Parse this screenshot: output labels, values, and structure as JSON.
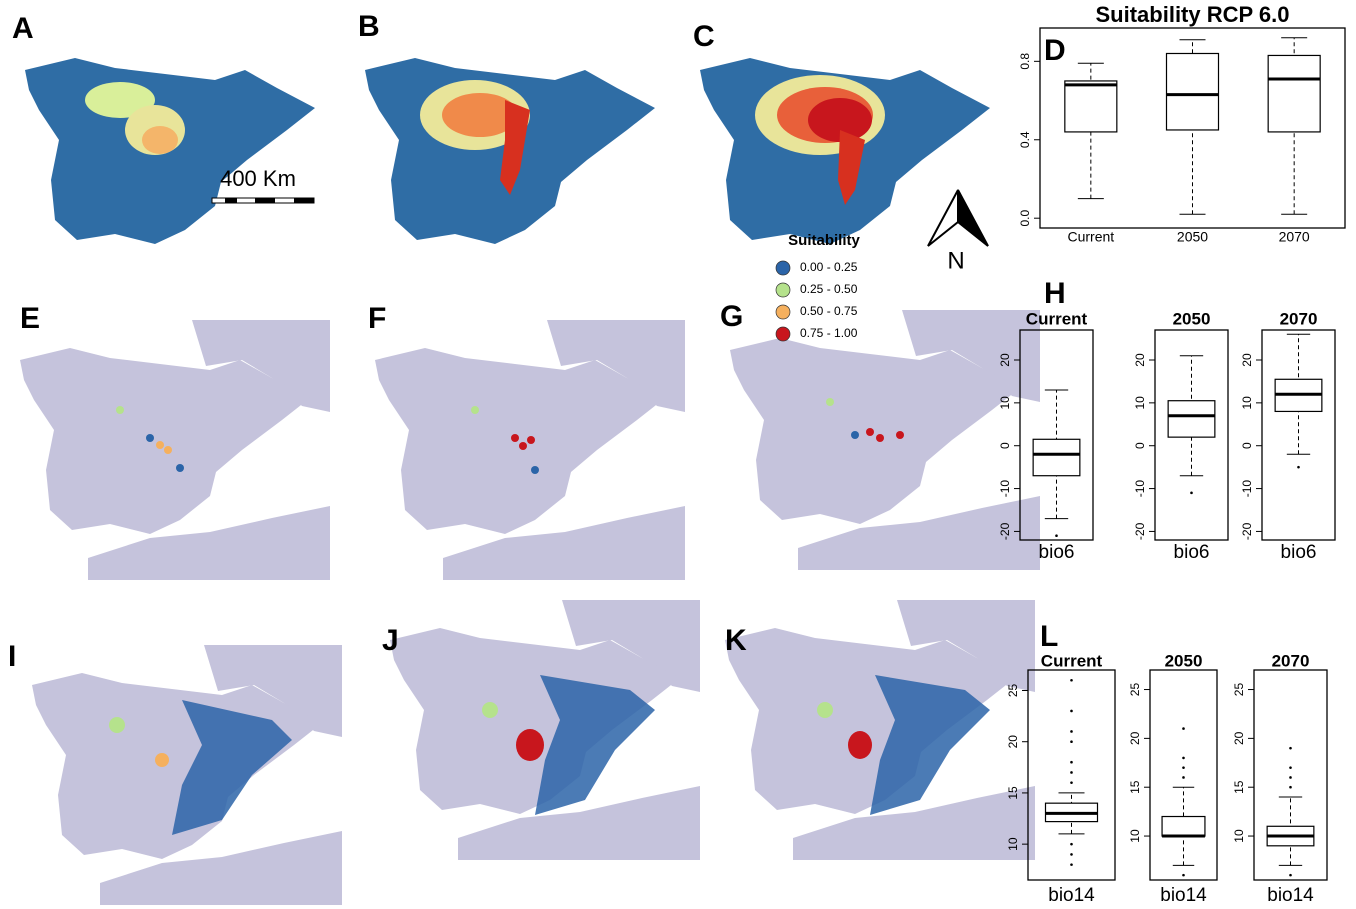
{
  "panel_labels": [
    "A",
    "B",
    "C",
    "D",
    "E",
    "F",
    "G",
    "H",
    "I",
    "J",
    "K",
    "L"
  ],
  "scale_bar": "400 Km",
  "north": "N",
  "legend": {
    "title": "Suitability",
    "items": [
      {
        "label": "0.00 - 0.25",
        "color": "#2b64a8"
      },
      {
        "label": "0.25 - 0.50",
        "color": "#b5e28c"
      },
      {
        "label": "0.50 - 0.75",
        "color": "#f5b05e"
      },
      {
        "label": "0.75 - 1.00",
        "color": "#c8161d"
      }
    ]
  },
  "chart_data": [
    {
      "type": "box",
      "title": "Suitability RCP 6.0",
      "categories": [
        "Current",
        "2050",
        "2070"
      ],
      "min": [
        0.1,
        0.02,
        0.02
      ],
      "q1": [
        0.44,
        0.45,
        0.44
      ],
      "median": [
        0.68,
        0.63,
        0.71
      ],
      "q3": [
        0.7,
        0.84,
        0.83
      ],
      "max": [
        0.79,
        0.91,
        0.92
      ],
      "outliers": [
        [],
        [],
        []
      ],
      "ylim": [
        -0.05,
        0.97
      ],
      "yticks": [
        {
          "value": 0,
          "label": "0.0"
        },
        0.4,
        0.8
      ]
    },
    {
      "type": "box",
      "title": "Current",
      "xlabel": "bio6",
      "min": [
        -17
      ],
      "q1": [
        -7
      ],
      "median": [
        -2
      ],
      "q3": [
        1.5
      ],
      "max": [
        13
      ],
      "outliers": [
        [
          -21
        ]
      ],
      "ylim": [
        -22,
        27
      ],
      "yticks": [
        -20,
        -10,
        0,
        10,
        20
      ]
    },
    {
      "type": "box",
      "title": "2050",
      "xlabel": "bio6",
      "min": [
        -7
      ],
      "q1": [
        2
      ],
      "median": [
        7
      ],
      "q3": [
        10.5
      ],
      "max": [
        21
      ],
      "outliers": [
        [
          -11
        ]
      ],
      "ylim": [
        -22,
        27
      ],
      "yticks": [
        -20,
        -10,
        0,
        10,
        20
      ]
    },
    {
      "type": "box",
      "title": "2070",
      "xlabel": "bio6",
      "min": [
        -2
      ],
      "q1": [
        8
      ],
      "median": [
        12
      ],
      "q3": [
        15.5
      ],
      "max": [
        26
      ],
      "outliers": [
        [
          -5
        ]
      ],
      "ylim": [
        -22,
        27
      ],
      "yticks": [
        -20,
        -10,
        0,
        10,
        20
      ]
    },
    {
      "type": "box",
      "title": "Current",
      "xlabel": "bio14",
      "min": [
        11
      ],
      "q1": [
        12.2
      ],
      "median": [
        13
      ],
      "q3": [
        14
      ],
      "max": [
        15
      ],
      "outliers": [
        [
          8,
          9,
          10,
          16,
          17,
          18,
          20,
          21,
          23,
          26
        ]
      ],
      "ylim": [
        6.5,
        27
      ],
      "yticks": [
        10,
        15,
        20,
        25
      ]
    },
    {
      "type": "box",
      "title": "2050",
      "xlabel": "bio14",
      "min": [
        7
      ],
      "q1": [
        10
      ],
      "median": [
        10
      ],
      "q3": [
        12
      ],
      "max": [
        15
      ],
      "outliers": [
        [
          6,
          16,
          17,
          18,
          21
        ]
      ],
      "ylim": [
        5.5,
        27
      ],
      "yticks": [
        10,
        15,
        20,
        25
      ]
    },
    {
      "type": "box",
      "title": "2070",
      "xlabel": "bio14",
      "min": [
        7
      ],
      "q1": [
        9
      ],
      "median": [
        10
      ],
      "q3": [
        11
      ],
      "max": [
        14
      ],
      "outliers": [
        [
          6,
          15,
          16,
          17,
          19
        ]
      ],
      "ylim": [
        5.5,
        27
      ],
      "yticks": [
        10,
        15,
        20,
        25
      ]
    }
  ]
}
